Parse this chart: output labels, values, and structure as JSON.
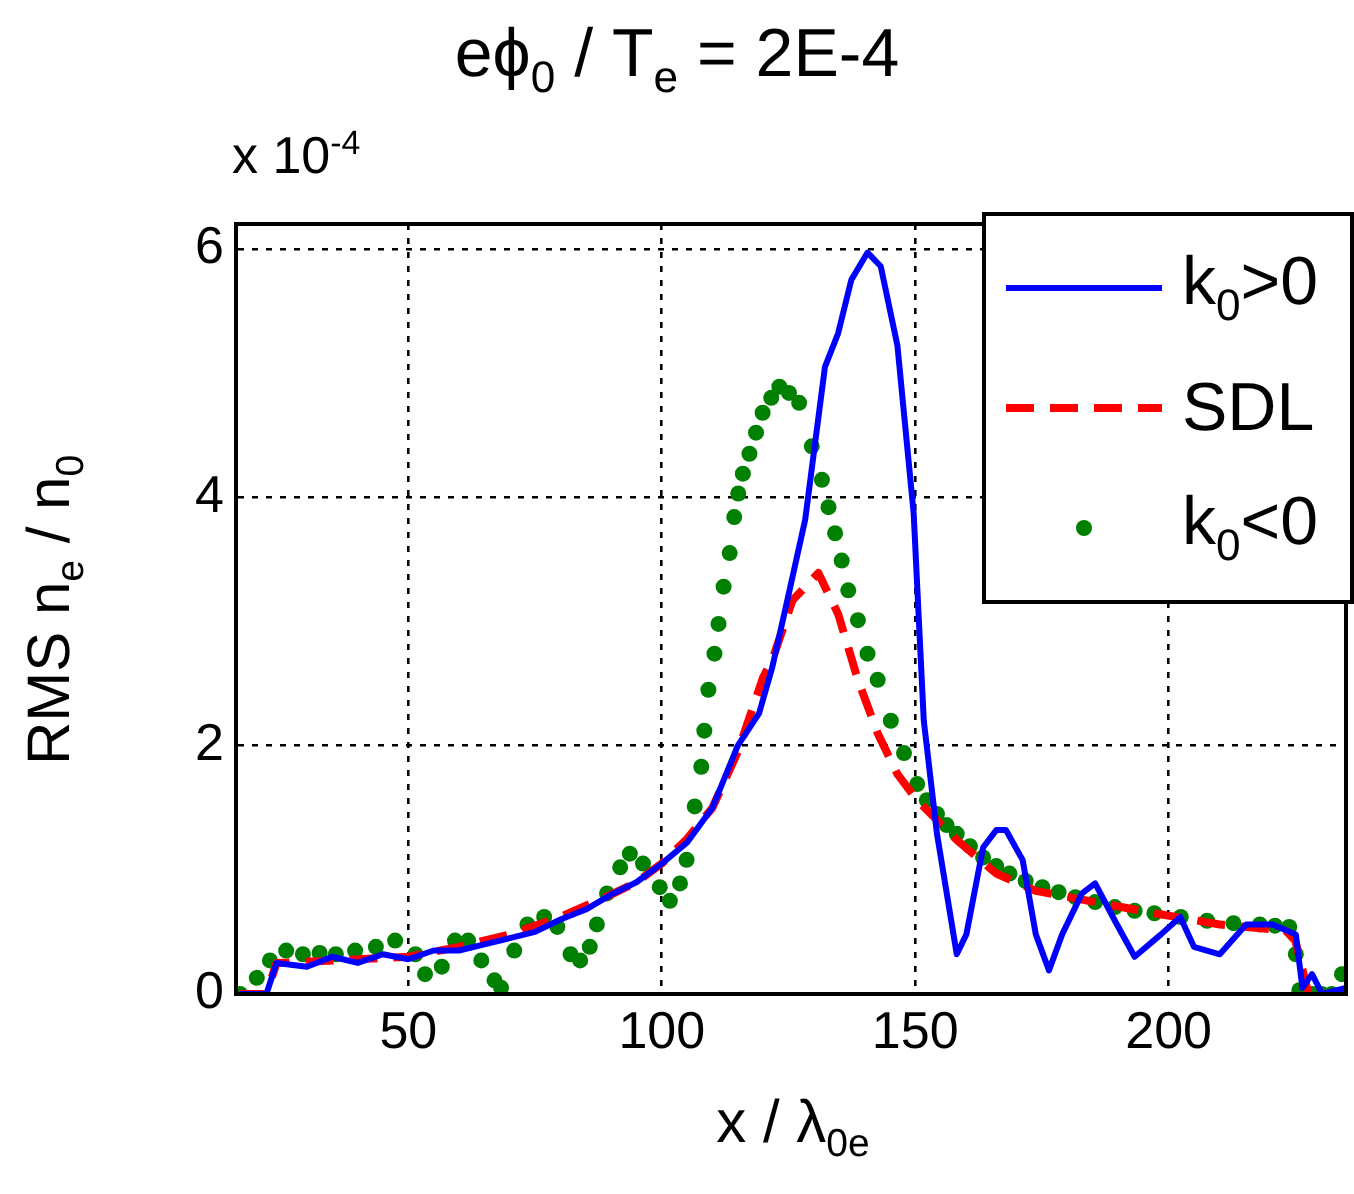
{
  "chart_data": {
    "type": "line",
    "title": "eϕ$_{0}$ / T$_{e}$ = 2E-4",
    "xlabel": "x / λ$_{0e}$",
    "ylabel": "RMS n$_{e}$ / n$_{0}$",
    "annotations": [
      "x 10$^{-4}$"
    ],
    "xlim": [
      16,
      235
    ],
    "xticks": [
      50,
      100,
      150,
      200
    ],
    "ylim": [
      0,
      6.2
    ],
    "yticks": [
      0,
      2,
      4,
      6
    ],
    "grid": true,
    "legend": "top right",
    "series": [
      {
        "name": "k$_{0}$>0",
        "type": "line",
        "color": "#0000ff",
        "line_style": "solid",
        "marker": "none",
        "x": [
          16.8,
          20,
          22,
          24,
          30,
          35,
          40,
          45,
          50,
          55,
          60,
          65,
          70,
          75,
          80,
          85,
          90,
          95,
          100,
          105,
          110,
          115,
          119.2,
          121.8,
          125.1,
          128.3,
          132.2,
          134.8,
          137.4,
          140.6,
          143.2,
          146.5,
          149.7,
          151.7,
          154.3,
          158.2,
          160.1,
          163.4,
          166,
          167.9,
          171.2,
          173.8,
          176.4,
          179,
          182.9,
          185.5,
          189.4,
          193.3,
          198.5,
          202.3,
          205,
          210.1,
          215.3,
          220.5,
          225.1,
          226.4,
          228.3,
          230.3,
          235
        ],
        "values": [
          0,
          0,
          0,
          0.25,
          0.22,
          0.3,
          0.25,
          0.32,
          0.28,
          0.35,
          0.35,
          0.4,
          0.45,
          0.5,
          0.6,
          0.68,
          0.8,
          0.9,
          1.05,
          1.22,
          1.5,
          2.0,
          2.26,
          2.63,
          3.23,
          3.82,
          5.05,
          5.32,
          5.75,
          5.97,
          5.86,
          5.22,
          3.87,
          2.2,
          1.29,
          0.32,
          0.48,
          1.18,
          1.32,
          1.32,
          1.08,
          0.48,
          0.19,
          0.48,
          0.81,
          0.89,
          0.59,
          0.3,
          0.48,
          0.62,
          0.38,
          0.32,
          0.56,
          0.56,
          0.48,
          0.05,
          0.16,
          0,
          0.05
        ]
      },
      {
        "name": "SDL",
        "type": "line",
        "color": "#ff0000",
        "line_style": "dashed",
        "marker": "none",
        "x": [
          16.8,
          22,
          24,
          30,
          40,
          50,
          60,
          70,
          80,
          90,
          95,
          100,
          105,
          110,
          115,
          120,
          121.8,
          125.8,
          130.9,
          134.8,
          138.7,
          142.6,
          146.5,
          150.4,
          158.2,
          166,
          173.8,
          184.2,
          197.2,
          210.1,
          223.1,
          225,
          227.6,
          235
        ],
        "values": [
          0,
          0,
          0.25,
          0.26,
          0.28,
          0.3,
          0.38,
          0.48,
          0.62,
          0.8,
          0.9,
          1.05,
          1.25,
          1.5,
          1.95,
          2.55,
          2.69,
          3.17,
          3.39,
          3.06,
          2.53,
          2.1,
          1.77,
          1.56,
          1.24,
          0.97,
          0.83,
          0.75,
          0.65,
          0.56,
          0.51,
          0.43,
          0,
          0
        ]
      },
      {
        "name": "k$_{0}$<0",
        "type": "scatter",
        "color": "#008000",
        "marker": "circle",
        "x": [
          16.8,
          20.1,
          22.7,
          25.9,
          29.2,
          32.5,
          35.7,
          39.5,
          43.6,
          47.4,
          51.4,
          53.3,
          56.6,
          59.2,
          61.8,
          64.4,
          67,
          68.3,
          70.9,
          73.5,
          76.8,
          79.4,
          82,
          83.9,
          85.8,
          87.2,
          89.2,
          91.8,
          93.7,
          96.3,
          99.6,
          101.6,
          103.6,
          104.9,
          106.5,
          107.8,
          108.4,
          109.2,
          110.4,
          111.2,
          112.2,
          113.4,
          114.3,
          115.1,
          116,
          117.3,
          118.6,
          119.9,
          121.6,
          123.2,
          125.1,
          127.1,
          129.6,
          131.6,
          132.9,
          134.2,
          135.5,
          136.8,
          138.7,
          140.6,
          142.6,
          145.2,
          147.8,
          150.4,
          152.3,
          154.3,
          156.2,
          158.2,
          160.8,
          163.4,
          166,
          168.6,
          171.8,
          175.1,
          178.3,
          181.6,
          185.5,
          189.4,
          193.3,
          197.2,
          202.4,
          207.6,
          212.8,
          218,
          221,
          223.8,
          225.1,
          225.8,
          228.3,
          230.2,
          232.2,
          234.2
        ],
        "values": [
          0,
          0.13,
          0.27,
          0.35,
          0.32,
          0.33,
          0.32,
          0.35,
          0.38,
          0.43,
          0.32,
          0.16,
          0.22,
          0.43,
          0.43,
          0.27,
          0.11,
          0.05,
          0.35,
          0.56,
          0.62,
          0.54,
          0.32,
          0.27,
          0.38,
          0.56,
          0.81,
          1.02,
          1.13,
          1.05,
          0.86,
          0.75,
          0.89,
          1.08,
          1.51,
          1.83,
          2.12,
          2.45,
          2.74,
          2.98,
          3.28,
          3.55,
          3.84,
          4.03,
          4.19,
          4.35,
          4.52,
          4.68,
          4.8,
          4.89,
          4.84,
          4.76,
          4.41,
          4.14,
          3.92,
          3.71,
          3.49,
          3.25,
          3.01,
          2.74,
          2.53,
          2.2,
          1.94,
          1.69,
          1.56,
          1.45,
          1.36,
          1.29,
          1.19,
          1.1,
          1.03,
          0.97,
          0.91,
          0.86,
          0.82,
          0.78,
          0.74,
          0.7,
          0.67,
          0.65,
          0.62,
          0.59,
          0.57,
          0.56,
          0.55,
          0.54,
          0.32,
          0.03,
          0,
          0,
          0,
          0.16
        ]
      }
    ]
  }
}
